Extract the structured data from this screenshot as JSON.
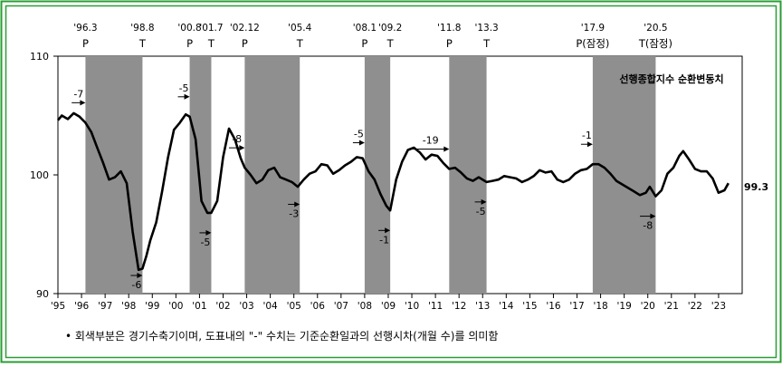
{
  "chart_data": {
    "type": "line",
    "title": "선행종합지수 순환변동치",
    "ylim": [
      90,
      110
    ],
    "yticks": [
      90,
      100,
      110
    ],
    "x_tick_labels": [
      "'95",
      "'96",
      "'97",
      "'98",
      "'99",
      "'00",
      "'01",
      "'02",
      "'03",
      "'04",
      "'05",
      "'06",
      "'07",
      "'08",
      "'09",
      "'10",
      "'11",
      "'12",
      "'13",
      "'14",
      "'15",
      "'16",
      "'17",
      "'18",
      "'19",
      "'20",
      "'21",
      "'22",
      "'23"
    ],
    "last_value_label": "99.3",
    "footnote": "• 회색부분은 경기수축기이며, 도표내의 \"-\" 수치는 기준순환일과의 선행시차(개월 수)를 의미함",
    "recessions": [
      {
        "start": "1996-03",
        "end": "1998-08"
      },
      {
        "start": "2000-08",
        "end": "2001-07"
      },
      {
        "start": "2002-12",
        "end": "2005-04"
      },
      {
        "start": "2008-01",
        "end": "2009-02"
      },
      {
        "start": "2011-08",
        "end": "2013-03"
      },
      {
        "start": "2017-09",
        "end": "2020-05"
      }
    ],
    "turning_points": [
      {
        "date": "1996-03",
        "date_label": "'96.3",
        "type_label": "P"
      },
      {
        "date": "1998-08",
        "date_label": "'98.8",
        "type_label": "T"
      },
      {
        "date": "2000-08",
        "date_label": "'00.8",
        "type_label": "P"
      },
      {
        "date": "2001-07",
        "date_label": "'01.7",
        "type_label": "T"
      },
      {
        "date": "2002-12",
        "date_label": "'02.12",
        "type_label": "P"
      },
      {
        "date": "2005-04",
        "date_label": "'05.4",
        "type_label": "T"
      },
      {
        "date": "2008-01",
        "date_label": "'08.1",
        "type_label": "P"
      },
      {
        "date": "2009-02",
        "date_label": "'09.2",
        "type_label": "T"
      },
      {
        "date": "2011-08",
        "date_label": "'11.8",
        "type_label": "P"
      },
      {
        "date": "2013-03",
        "date_label": "'13.3",
        "type_label": "T"
      },
      {
        "date": "2017-09",
        "date_label": "'17.9",
        "type_label": "P(잠정)"
      },
      {
        "date": "2020-05",
        "date_label": "'20.5",
        "type_label": "T(잠정)"
      }
    ],
    "lead_annotations": [
      {
        "label": "-7",
        "at": "1996-03",
        "side": "above"
      },
      {
        "label": "-6",
        "at": "1998-08",
        "side": "below"
      },
      {
        "label": "-5",
        "at": "2000-08",
        "side": "above"
      },
      {
        "label": "-5",
        "at": "2001-07",
        "side": "below"
      },
      {
        "label": "-8",
        "at": "2002-12",
        "side": "above"
      },
      {
        "label": "-3",
        "at": "2005-04",
        "side": "below"
      },
      {
        "label": "-5",
        "at": "2008-01",
        "side": "above"
      },
      {
        "label": "-1",
        "at": "2009-02",
        "side": "below"
      },
      {
        "label": "-19",
        "at": "2011-08",
        "side": "above"
      },
      {
        "label": "-5",
        "at": "2013-03",
        "side": "below"
      },
      {
        "label": "-1",
        "at": "2017-09",
        "side": "above"
      },
      {
        "label": "-8",
        "at": "2020-05",
        "side": "below"
      }
    ],
    "series": [
      {
        "values": [
          {
            "x": "1995-01",
            "y": 104.6
          },
          {
            "x": "1995-03",
            "y": 105.0
          },
          {
            "x": "1995-06",
            "y": 104.7
          },
          {
            "x": "1995-09",
            "y": 105.2
          },
          {
            "x": "1995-12",
            "y": 104.9
          },
          {
            "x": "1996-03",
            "y": 104.4
          },
          {
            "x": "1996-06",
            "y": 103.6
          },
          {
            "x": "1996-09",
            "y": 102.3
          },
          {
            "x": "1996-12",
            "y": 101.0
          },
          {
            "x": "1997-03",
            "y": 99.6
          },
          {
            "x": "1997-06",
            "y": 99.8
          },
          {
            "x": "1997-09",
            "y": 100.3
          },
          {
            "x": "1997-12",
            "y": 99.3
          },
          {
            "x": "1998-03",
            "y": 95.2
          },
          {
            "x": "1998-06",
            "y": 92.0
          },
          {
            "x": "1998-08",
            "y": 92.1
          },
          {
            "x": "1998-10",
            "y": 93.2
          },
          {
            "x": "1998-12",
            "y": 94.5
          },
          {
            "x": "1999-03",
            "y": 96.0
          },
          {
            "x": "1999-06",
            "y": 98.6
          },
          {
            "x": "1999-09",
            "y": 101.5
          },
          {
            "x": "1999-12",
            "y": 103.8
          },
          {
            "x": "2000-03",
            "y": 104.4
          },
          {
            "x": "2000-06",
            "y": 105.1
          },
          {
            "x": "2000-08",
            "y": 104.9
          },
          {
            "x": "2000-11",
            "y": 103.0
          },
          {
            "x": "2001-02",
            "y": 97.8
          },
          {
            "x": "2001-05",
            "y": 96.8
          },
          {
            "x": "2001-07",
            "y": 96.8
          },
          {
            "x": "2001-10",
            "y": 97.8
          },
          {
            "x": "2002-01",
            "y": 101.5
          },
          {
            "x": "2002-04",
            "y": 103.9
          },
          {
            "x": "2002-07",
            "y": 103.0
          },
          {
            "x": "2002-10",
            "y": 101.4
          },
          {
            "x": "2002-12",
            "y": 100.6
          },
          {
            "x": "2003-03",
            "y": 100.0
          },
          {
            "x": "2003-06",
            "y": 99.3
          },
          {
            "x": "2003-09",
            "y": 99.6
          },
          {
            "x": "2003-12",
            "y": 100.4
          },
          {
            "x": "2004-03",
            "y": 100.6
          },
          {
            "x": "2004-06",
            "y": 99.8
          },
          {
            "x": "2004-09",
            "y": 99.6
          },
          {
            "x": "2004-12",
            "y": 99.4
          },
          {
            "x": "2005-03",
            "y": 99.0
          },
          {
            "x": "2005-06",
            "y": 99.6
          },
          {
            "x": "2005-09",
            "y": 100.1
          },
          {
            "x": "2005-12",
            "y": 100.3
          },
          {
            "x": "2006-03",
            "y": 100.9
          },
          {
            "x": "2006-06",
            "y": 100.8
          },
          {
            "x": "2006-09",
            "y": 100.1
          },
          {
            "x": "2006-12",
            "y": 100.4
          },
          {
            "x": "2007-03",
            "y": 100.8
          },
          {
            "x": "2007-06",
            "y": 101.1
          },
          {
            "x": "2007-09",
            "y": 101.5
          },
          {
            "x": "2007-12",
            "y": 101.4
          },
          {
            "x": "2008-03",
            "y": 100.3
          },
          {
            "x": "2008-06",
            "y": 99.6
          },
          {
            "x": "2008-09",
            "y": 98.4
          },
          {
            "x": "2008-12",
            "y": 97.4
          },
          {
            "x": "2009-02",
            "y": 97.0
          },
          {
            "x": "2009-05",
            "y": 99.6
          },
          {
            "x": "2009-08",
            "y": 101.1
          },
          {
            "x": "2009-11",
            "y": 102.1
          },
          {
            "x": "2010-02",
            "y": 102.3
          },
          {
            "x": "2010-05",
            "y": 101.9
          },
          {
            "x": "2010-08",
            "y": 101.3
          },
          {
            "x": "2010-11",
            "y": 101.7
          },
          {
            "x": "2011-02",
            "y": 101.6
          },
          {
            "x": "2011-05",
            "y": 101.0
          },
          {
            "x": "2011-08",
            "y": 100.5
          },
          {
            "x": "2011-11",
            "y": 100.6
          },
          {
            "x": "2012-02",
            "y": 100.2
          },
          {
            "x": "2012-05",
            "y": 99.7
          },
          {
            "x": "2012-08",
            "y": 99.5
          },
          {
            "x": "2012-11",
            "y": 99.8
          },
          {
            "x": "2013-03",
            "y": 99.4
          },
          {
            "x": "2013-06",
            "y": 99.5
          },
          {
            "x": "2013-09",
            "y": 99.6
          },
          {
            "x": "2013-12",
            "y": 99.9
          },
          {
            "x": "2014-03",
            "y": 99.8
          },
          {
            "x": "2014-06",
            "y": 99.7
          },
          {
            "x": "2014-09",
            "y": 99.4
          },
          {
            "x": "2014-12",
            "y": 99.6
          },
          {
            "x": "2015-03",
            "y": 99.9
          },
          {
            "x": "2015-06",
            "y": 100.4
          },
          {
            "x": "2015-09",
            "y": 100.2
          },
          {
            "x": "2015-12",
            "y": 100.3
          },
          {
            "x": "2016-03",
            "y": 99.6
          },
          {
            "x": "2016-06",
            "y": 99.4
          },
          {
            "x": "2016-09",
            "y": 99.6
          },
          {
            "x": "2016-12",
            "y": 100.1
          },
          {
            "x": "2017-03",
            "y": 100.4
          },
          {
            "x": "2017-06",
            "y": 100.5
          },
          {
            "x": "2017-09",
            "y": 100.9
          },
          {
            "x": "2017-12",
            "y": 100.9
          },
          {
            "x": "2018-03",
            "y": 100.6
          },
          {
            "x": "2018-06",
            "y": 100.1
          },
          {
            "x": "2018-09",
            "y": 99.5
          },
          {
            "x": "2018-12",
            "y": 99.2
          },
          {
            "x": "2019-03",
            "y": 98.9
          },
          {
            "x": "2019-06",
            "y": 98.6
          },
          {
            "x": "2019-09",
            "y": 98.3
          },
          {
            "x": "2019-12",
            "y": 98.5
          },
          {
            "x": "2020-02",
            "y": 99.0
          },
          {
            "x": "2020-05",
            "y": 98.2
          },
          {
            "x": "2020-08",
            "y": 98.7
          },
          {
            "x": "2020-11",
            "y": 100.1
          },
          {
            "x": "2021-02",
            "y": 100.6
          },
          {
            "x": "2021-05",
            "y": 101.6
          },
          {
            "x": "2021-07",
            "y": 102.0
          },
          {
            "x": "2021-10",
            "y": 101.3
          },
          {
            "x": "2022-01",
            "y": 100.5
          },
          {
            "x": "2022-04",
            "y": 100.3
          },
          {
            "x": "2022-07",
            "y": 100.3
          },
          {
            "x": "2022-10",
            "y": 99.7
          },
          {
            "x": "2023-01",
            "y": 98.5
          },
          {
            "x": "2023-04",
            "y": 98.7
          },
          {
            "x": "2023-06",
            "y": 99.3
          }
        ]
      }
    ]
  }
}
